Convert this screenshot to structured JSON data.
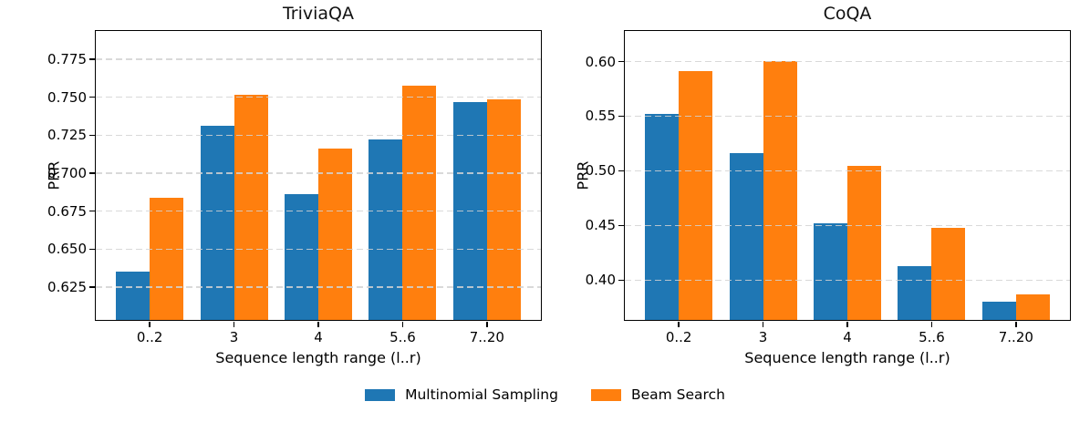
{
  "figure": {
    "background": "#ffffff",
    "legend": {
      "position": "bottom-center",
      "entries": [
        {
          "label": "Multinomial Sampling",
          "color": "#1f77b4"
        },
        {
          "label": "Beam Search",
          "color": "#ff7f0e"
        }
      ]
    }
  },
  "chart_data": [
    {
      "type": "bar",
      "title": "TriviaQA",
      "xlabel": "Sequence length range (l..r)",
      "ylabel": "PRR",
      "categories": [
        "0..2",
        "3",
        "4",
        "5..6",
        "7..20"
      ],
      "series": [
        {
          "name": "Multinomial Sampling",
          "color": "#1f77b4",
          "values": [
            0.635,
            0.731,
            0.686,
            0.722,
            0.7465
          ]
        },
        {
          "name": "Beam Search",
          "color": "#ff7f0e",
          "values": [
            0.684,
            0.7515,
            0.716,
            0.7575,
            0.7485
          ]
        }
      ],
      "ylim": [
        0.6035,
        0.7935
      ],
      "ytick_values": [
        0.625,
        0.65,
        0.675,
        0.7,
        0.725,
        0.75,
        0.775
      ],
      "ytick_labels": [
        "0.625",
        "0.650",
        "0.675",
        "0.700",
        "0.725",
        "0.750",
        "0.775"
      ],
      "grid": "horizontal dashed, drawn above bars",
      "legend_position": "figure bottom center"
    },
    {
      "type": "bar",
      "title": "CoQA",
      "xlabel": "Sequence length range (l..r)",
      "ylabel": "PRR",
      "categories": [
        "0..2",
        "3",
        "4",
        "5..6",
        "7..20"
      ],
      "series": [
        {
          "name": "Multinomial Sampling",
          "color": "#1f77b4",
          "values": [
            0.552,
            0.5165,
            0.452,
            0.413,
            0.3805
          ]
        },
        {
          "name": "Beam Search",
          "color": "#ff7f0e",
          "values": [
            0.591,
            0.6005,
            0.5045,
            0.448,
            0.387
          ]
        }
      ],
      "ylim": [
        0.3635,
        0.628
      ],
      "ytick_values": [
        0.4,
        0.45,
        0.5,
        0.55,
        0.6
      ],
      "ytick_labels": [
        "0.40",
        "0.45",
        "0.50",
        "0.55",
        "0.60"
      ],
      "grid": "horizontal dashed, drawn above bars",
      "legend_position": "figure bottom center"
    }
  ]
}
